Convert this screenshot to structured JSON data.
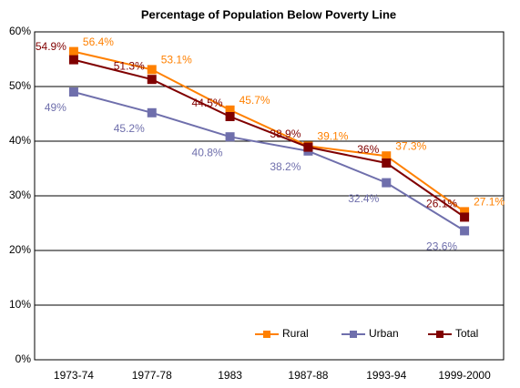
{
  "chart_data": {
    "type": "line",
    "title": "Percentage of Population Below Poverty Line",
    "categories": [
      "1973-74",
      "1977-78",
      "1983",
      "1987-88",
      "1993-94",
      "1999-2000"
    ],
    "series": [
      {
        "name": "Rural",
        "color": "#ff8000",
        "values": [
          56.4,
          53.1,
          45.7,
          39.1,
          37.3,
          27.1
        ],
        "value_labels": [
          "56.4%",
          "53.1%",
          "45.7%",
          "39.1%",
          "37.3%",
          "27.1%"
        ]
      },
      {
        "name": "Urban",
        "color": "#6f6fac",
        "values": [
          49,
          45.2,
          40.8,
          38.2,
          32.4,
          23.6
        ],
        "value_labels": [
          "49%",
          "45.2%",
          "40.8%",
          "38.2%",
          "32.4%",
          "23.6%"
        ]
      },
      {
        "name": "Total",
        "color": "#800000",
        "values": [
          54.9,
          51.3,
          44.5,
          38.9,
          36,
          26.1
        ],
        "value_labels": [
          "54.9%",
          "51.3%",
          "44.5%",
          "38.9%",
          "36%",
          "26.1%"
        ]
      }
    ],
    "ylim": [
      0,
      60
    ],
    "yticks": [
      {
        "value": 0,
        "label": "0%"
      },
      {
        "value": 10,
        "label": "10%"
      },
      {
        "value": 20,
        "label": "20%"
      },
      {
        "value": 30,
        "label": "30%"
      },
      {
        "value": 40,
        "label": "40%"
      },
      {
        "value": 50,
        "label": "50%"
      },
      {
        "value": 60,
        "label": "60%"
      }
    ],
    "grid": true,
    "legend": "lower right"
  }
}
